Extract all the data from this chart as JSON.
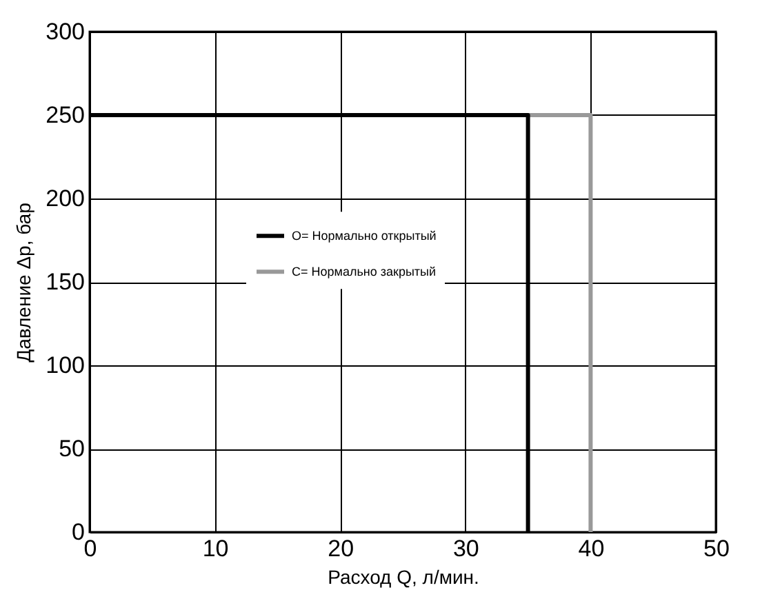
{
  "chart_data": {
    "type": "line",
    "xlabel": "Расход Q, л/мин.",
    "ylabel": "Давление Δp, бар",
    "xlim": [
      0,
      50
    ],
    "xticks": [
      0,
      10,
      20,
      30,
      40,
      50
    ],
    "ylim": [
      0,
      300
    ],
    "yticks": [
      0,
      50,
      100,
      150,
      200,
      250,
      300
    ],
    "grid": true,
    "legend": "left",
    "line_style": "solid",
    "marker": "none",
    "series": [
      {
        "name": "O= Нормально открытый",
        "color": "#000000",
        "x": [
          0,
          35,
          35
        ],
        "values": [
          250,
          250,
          0
        ]
      },
      {
        "name": "C= Нормально закрытый",
        "color": "#999999",
        "x": [
          0,
          40,
          40
        ],
        "values": [
          250,
          250,
          0
        ]
      }
    ]
  }
}
